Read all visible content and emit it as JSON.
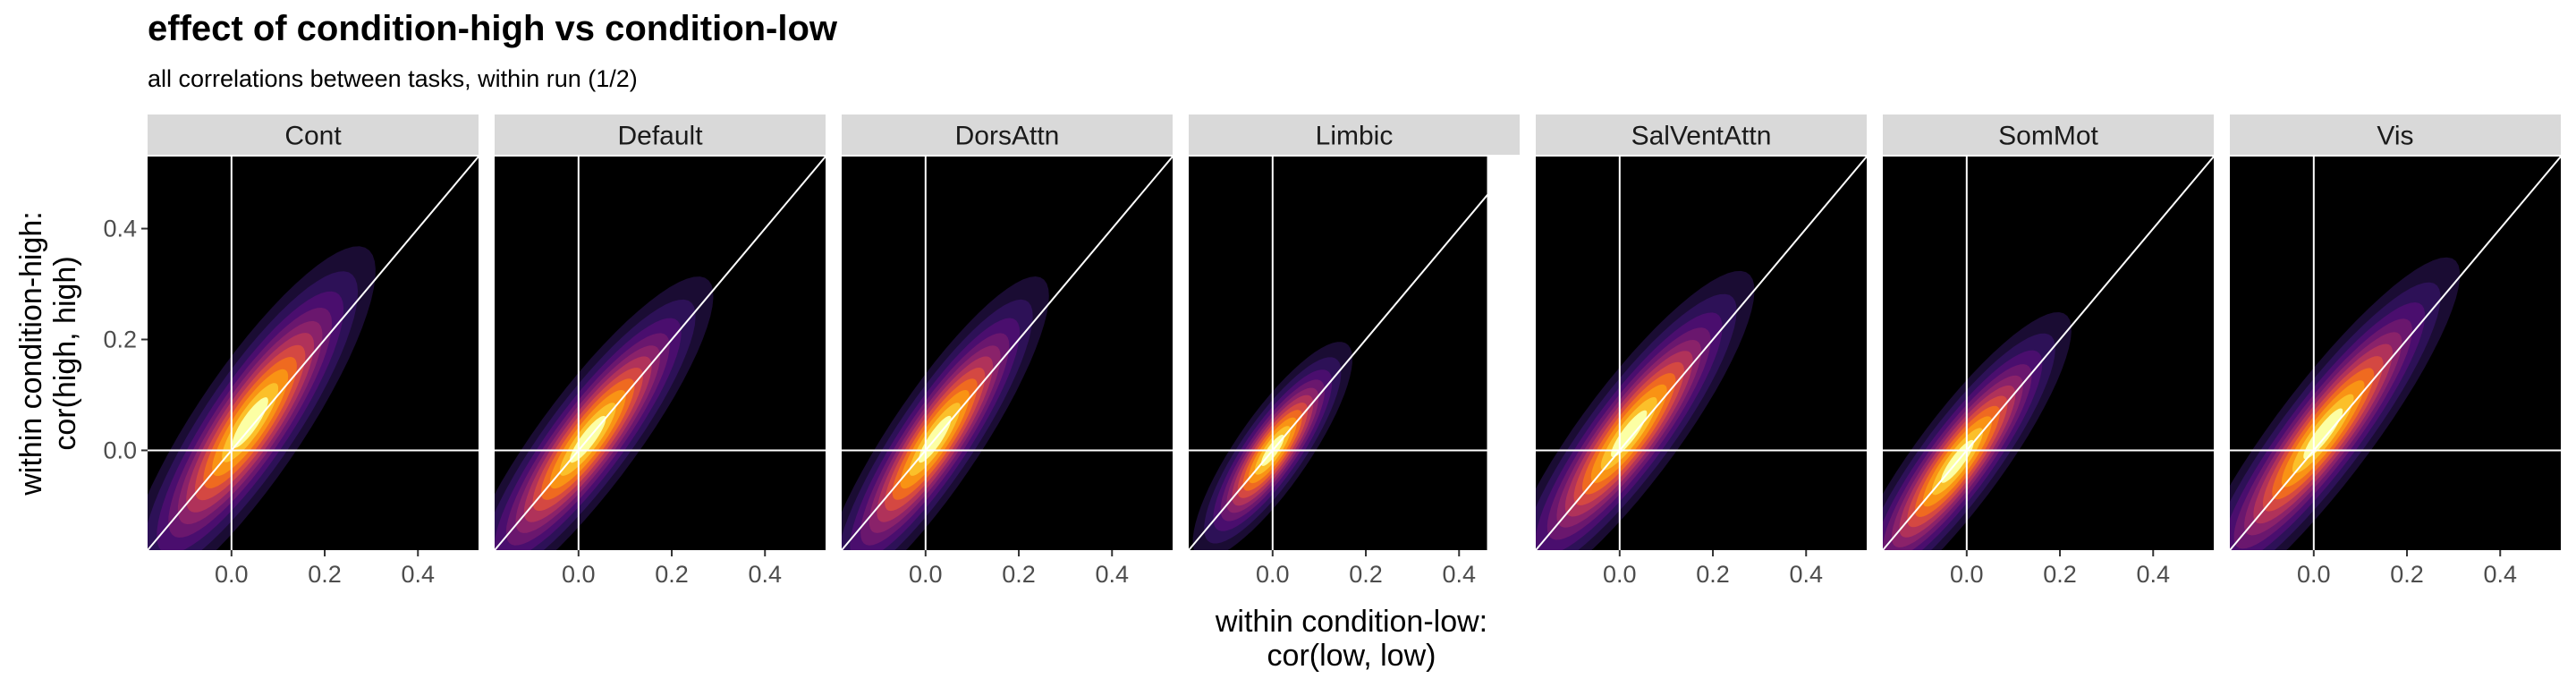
{
  "title": "effect of condition-high vs condition-low",
  "subtitle": "all correlations between tasks, within run (1/2)",
  "chart_data": {
    "type": "density-2d-facets",
    "title": "effect of condition-high vs condition-low",
    "subtitle": "all correlations between tasks, within run (1/2)",
    "xlabel_lines": [
      "within condition-low:",
      "cor(low, low)"
    ],
    "ylabel_lines": [
      "within condition-high:",
      "cor(high, high)"
    ],
    "xlim": [
      -0.18,
      0.53
    ],
    "ylim": [
      -0.18,
      0.53
    ],
    "x_ticks": [
      0.0,
      0.2,
      0.4
    ],
    "x_tick_labels": [
      "0.0",
      "0.2",
      "0.4"
    ],
    "y_ticks": [
      0.0,
      0.2,
      0.4
    ],
    "y_tick_labels": [
      "0.0",
      "0.2",
      "0.4"
    ],
    "reference_lines": [
      "x = 0",
      "y = 0",
      "y = x"
    ],
    "palette": [
      "#1a0c33",
      "#2d1157",
      "#4a0e6e",
      "#6a176e",
      "#8a226a",
      "#b0325a",
      "#d44842",
      "#ef6a20",
      "#f99314",
      "#fbc02a",
      "#fcffa4"
    ],
    "panel_background": "#000000",
    "strip_fill": "#d9d9d9",
    "panels": [
      {
        "name": "Cont",
        "center": [
          0.04,
          0.05
        ],
        "sd": [
          0.11,
          0.13
        ],
        "rho": 0.86,
        "xmax": 0.53
      },
      {
        "name": "Default",
        "center": [
          0.02,
          0.02
        ],
        "sd": [
          0.11,
          0.12
        ],
        "rho": 0.88,
        "xmax": 0.53
      },
      {
        "name": "DorsAttn",
        "center": [
          0.02,
          0.02
        ],
        "sd": [
          0.1,
          0.12
        ],
        "rho": 0.88,
        "xmax": 0.53
      },
      {
        "name": "Limbic",
        "center": [
          0.0,
          0.0
        ],
        "sd": [
          0.07,
          0.08
        ],
        "rho": 0.84,
        "xmax": 0.46
      },
      {
        "name": "SalVentAttn",
        "center": [
          0.02,
          0.03
        ],
        "sd": [
          0.11,
          0.12
        ],
        "rho": 0.88,
        "xmax": 0.53
      },
      {
        "name": "SomMot",
        "center": [
          -0.02,
          -0.02
        ],
        "sd": [
          0.1,
          0.11
        ],
        "rho": 0.88,
        "xmax": 0.53
      },
      {
        "name": "Vis",
        "center": [
          0.02,
          0.03
        ],
        "sd": [
          0.12,
          0.13
        ],
        "rho": 0.9,
        "xmax": 0.53
      }
    ]
  }
}
